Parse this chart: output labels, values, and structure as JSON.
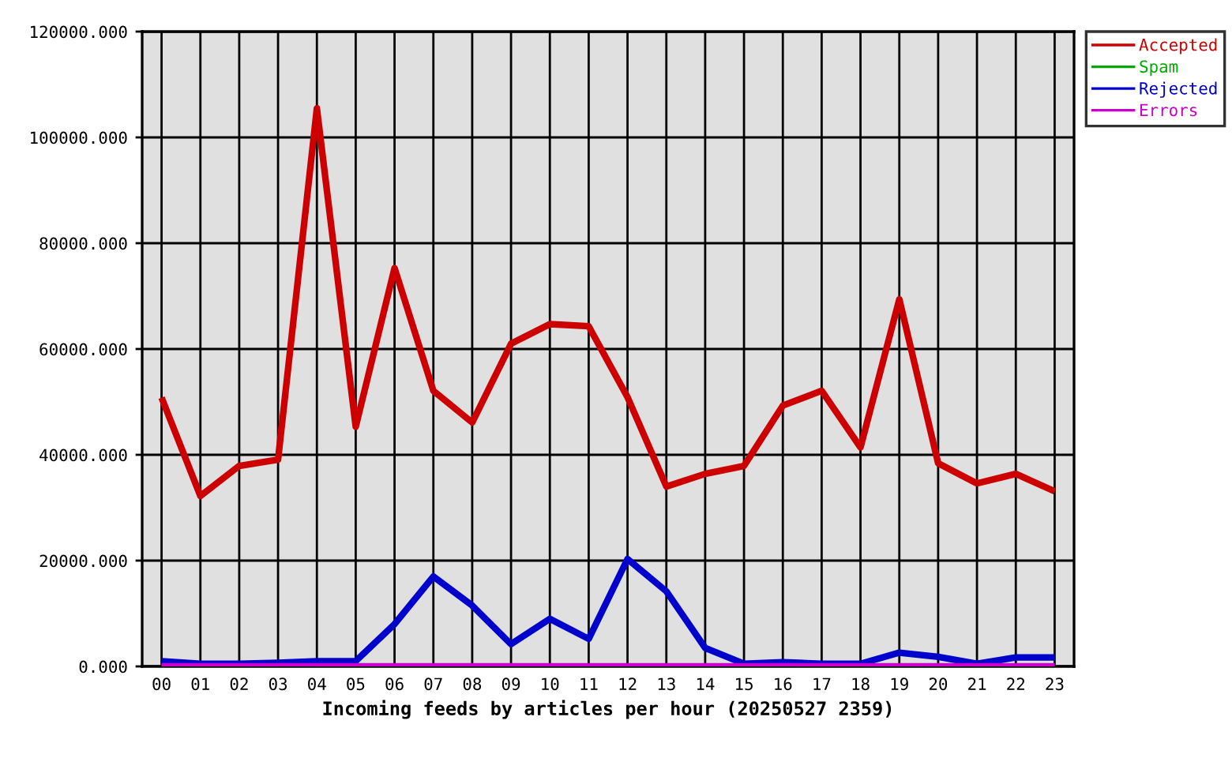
{
  "chart_data": {
    "type": "line",
    "xlabel": "Incoming feeds by articles per hour (20250527 2359)",
    "categories": [
      "00",
      "01",
      "02",
      "03",
      "04",
      "05",
      "06",
      "07",
      "08",
      "09",
      "10",
      "11",
      "12",
      "13",
      "14",
      "15",
      "16",
      "17",
      "18",
      "19",
      "20",
      "21",
      "22",
      "23"
    ],
    "series": [
      {
        "name": "Accepted",
        "color": "#cc0000",
        "values": [
          50800,
          32200,
          37900,
          39100,
          105500,
          45300,
          75300,
          52100,
          46100,
          61000,
          64700,
          64300,
          50900,
          34000,
          36400,
          37900,
          49300,
          52100,
          41400,
          69400,
          38400,
          34600,
          36400,
          33100
        ]
      },
      {
        "name": "Spam",
        "color": "#00aa00",
        "values": [
          null,
          null,
          null,
          null,
          null,
          null,
          null,
          null,
          null,
          null,
          null,
          null,
          null,
          null,
          null,
          null,
          null,
          null,
          null,
          null,
          null,
          null,
          null,
          null
        ]
      },
      {
        "name": "Rejected",
        "color": "#0000cc",
        "values": [
          1000,
          500,
          500,
          700,
          1000,
          1000,
          8000,
          17000,
          11500,
          4200,
          9000,
          5200,
          20300,
          14200,
          3500,
          500,
          800,
          500,
          500,
          2600,
          1800,
          500,
          1700,
          1700
        ]
      },
      {
        "name": "Errors",
        "color": "#cc00cc",
        "values": [
          0,
          0,
          0,
          0,
          0,
          0,
          0,
          0,
          0,
          0,
          0,
          0,
          0,
          0,
          0,
          0,
          0,
          0,
          0,
          0,
          0,
          0,
          0,
          0
        ]
      }
    ],
    "ylim": [
      0,
      120000
    ],
    "yticks": [
      {
        "value": 0,
        "label": "0.000"
      },
      {
        "value": 20000,
        "label": "20000.000"
      },
      {
        "value": 40000,
        "label": "40000.000"
      },
      {
        "value": 60000,
        "label": "60000.000"
      },
      {
        "value": 80000,
        "label": "80000.000"
      },
      {
        "value": 100000,
        "label": "100000.000"
      },
      {
        "value": 120000,
        "label": "120000.000"
      }
    ],
    "grid": true,
    "legend": "top right"
  }
}
